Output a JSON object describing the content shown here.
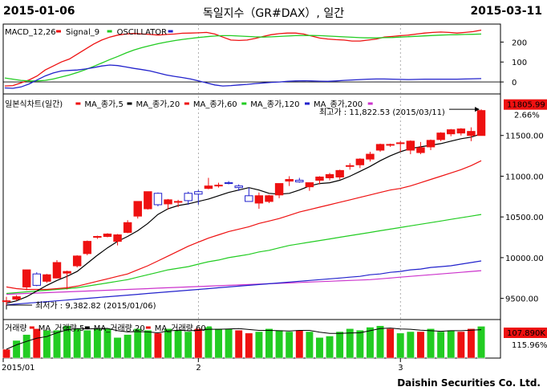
{
  "header": {
    "date_start": "2015-01-06",
    "title": "독일지수（GR#DAX）, 일간",
    "date_end": "2015-03-11"
  },
  "footer": {
    "brand": "Daishin Securities Co. Ltd."
  },
  "colors": {
    "red": "#ee1111",
    "green": "#22cc22",
    "blue": "#2222cc",
    "magenta": "#cc33cc",
    "black": "#000000",
    "grid": "#888888"
  },
  "chart_data": [
    {
      "type": "line",
      "panel": "macd",
      "legend": [
        {
          "label": "MACD_12,26",
          "color": "#ee1111"
        },
        {
          "label": "Signal_9",
          "color": "#22cc22"
        },
        {
          "label": "OSCILLATOR",
          "color": "#2222cc"
        }
      ],
      "y_ticks": [
        "200",
        "100",
        "0"
      ],
      "ylim": [
        -60,
        290
      ],
      "series": [
        {
          "name": "MACD_12,26",
          "color": "#ee1111",
          "values": [
            -20,
            -18,
            -5,
            10,
            30,
            60,
            80,
            100,
            115,
            140,
            165,
            190,
            210,
            225,
            235,
            240,
            243,
            240,
            238,
            235,
            238,
            240,
            244,
            245,
            246,
            248,
            240,
            225,
            210,
            208,
            210,
            218,
            228,
            237,
            242,
            245,
            245,
            240,
            230,
            220,
            215,
            212,
            210,
            205,
            205,
            210,
            215,
            225,
            228,
            232,
            235,
            240,
            245,
            248,
            250,
            248,
            245,
            248,
            252,
            260
          ]
        },
        {
          "name": "Signal_9",
          "color": "#22cc22",
          "values": [
            20,
            14,
            8,
            5,
            5,
            8,
            15,
            25,
            35,
            48,
            62,
            78,
            95,
            112,
            128,
            145,
            160,
            172,
            182,
            192,
            200,
            207,
            213,
            218,
            223,
            227,
            230,
            232,
            232,
            230,
            228,
            226,
            225,
            226,
            228,
            230,
            232,
            233,
            233,
            232,
            230,
            228,
            226,
            224,
            222,
            221,
            221,
            222,
            223,
            225,
            227,
            229,
            231,
            233,
            235,
            236,
            237,
            238,
            239,
            240
          ]
        },
        {
          "name": "OSCILLATOR",
          "color": "#2222cc",
          "values": [
            -30,
            -32,
            -25,
            -10,
            10,
            30,
            45,
            55,
            58,
            60,
            65,
            72,
            80,
            85,
            82,
            75,
            68,
            62,
            55,
            45,
            35,
            28,
            22,
            15,
            5,
            -5,
            -15,
            -20,
            -18,
            -15,
            -12,
            -8,
            -5,
            -2,
            0,
            3,
            5,
            6,
            5,
            4,
            3,
            5,
            8,
            10,
            12,
            14,
            15,
            15,
            14,
            13,
            12,
            13,
            14,
            14,
            14,
            14,
            14,
            15,
            16,
            17
          ]
        }
      ]
    },
    {
      "type": "candlestick",
      "panel": "price",
      "legend": [
        {
          "label": "일본식차트(일간)",
          "color": "#ee1111"
        },
        {
          "label": "MA_종가,5",
          "color": "#000000"
        },
        {
          "label": "MA_종가,20",
          "color": "#ee1111"
        },
        {
          "label": "MA_종가,60",
          "color": "#22cc22"
        },
        {
          "label": "MA_종가,120",
          "color": "#2222cc"
        },
        {
          "label": "MA_종가,200",
          "color": "#cc33cc"
        }
      ],
      "y_ticks": [
        "11500.00",
        "11000.00",
        "10500.00",
        "10000.00",
        "9500.00"
      ],
      "ylim": [
        9240,
        12010
      ],
      "max_annotation": {
        "label": "최고가 : 11,822.53 (2015/03/11)"
      },
      "min_annotation": {
        "label": "최저가 : 9,382.82 (2015/01/06)"
      },
      "last_value": "11805.99",
      "last_change": "2.66%",
      "candles": [
        {
          "o": 9470,
          "h": 9520,
          "l": 9383,
          "c": 9470
        },
        {
          "o": 9490,
          "h": 9540,
          "l": 9470,
          "c": 9520
        },
        {
          "o": 9640,
          "h": 9850,
          "l": 9600,
          "c": 9850
        },
        {
          "o": 9800,
          "h": 9820,
          "l": 9650,
          "c": 9660
        },
        {
          "o": 9710,
          "h": 9800,
          "l": 9690,
          "c": 9790
        },
        {
          "o": 9750,
          "h": 9970,
          "l": 9750,
          "c": 9940
        },
        {
          "o": 9810,
          "h": 9840,
          "l": 9610,
          "c": 9830
        },
        {
          "o": 9900,
          "h": 10030,
          "l": 9880,
          "c": 10020
        },
        {
          "o": 10050,
          "h": 10210,
          "l": 10030,
          "c": 10200
        },
        {
          "o": 10250,
          "h": 10270,
          "l": 10230,
          "c": 10260
        },
        {
          "o": 10260,
          "h": 10300,
          "l": 10250,
          "c": 10290
        },
        {
          "o": 10200,
          "h": 10290,
          "l": 10150,
          "c": 10280
        },
        {
          "o": 10310,
          "h": 10460,
          "l": 10300,
          "c": 10430
        },
        {
          "o": 10510,
          "h": 10690,
          "l": 10480,
          "c": 10690
        },
        {
          "o": 10600,
          "h": 10810,
          "l": 10590,
          "c": 10810
        },
        {
          "o": 10790,
          "h": 10800,
          "l": 10630,
          "c": 10650
        },
        {
          "o": 10660,
          "h": 10720,
          "l": 10590,
          "c": 10710
        },
        {
          "o": 10680,
          "h": 10710,
          "l": 10620,
          "c": 10690
        },
        {
          "o": 10790,
          "h": 10810,
          "l": 10650,
          "c": 10700
        },
        {
          "o": 10810,
          "h": 10830,
          "l": 10650,
          "c": 10780
        },
        {
          "o": 10850,
          "h": 10980,
          "l": 10840,
          "c": 10880
        },
        {
          "o": 10880,
          "h": 10920,
          "l": 10860,
          "c": 10890
        },
        {
          "o": 10920,
          "h": 10940,
          "l": 10900,
          "c": 10910
        },
        {
          "o": 10880,
          "h": 10900,
          "l": 10820,
          "c": 10860
        },
        {
          "o": 10760,
          "h": 10860,
          "l": 10700,
          "c": 10690
        },
        {
          "o": 10670,
          "h": 10800,
          "l": 10600,
          "c": 10760
        },
        {
          "o": 10690,
          "h": 10770,
          "l": 10670,
          "c": 10760
        },
        {
          "o": 10770,
          "h": 10910,
          "l": 10730,
          "c": 10910
        },
        {
          "o": 10940,
          "h": 11000,
          "l": 10880,
          "c": 10960
        },
        {
          "o": 10950,
          "h": 10980,
          "l": 10920,
          "c": 10930
        },
        {
          "o": 10870,
          "h": 10900,
          "l": 10820,
          "c": 10920
        },
        {
          "o": 10950,
          "h": 11000,
          "l": 10900,
          "c": 10990
        },
        {
          "o": 10980,
          "h": 11040,
          "l": 10950,
          "c": 11020
        },
        {
          "o": 10990,
          "h": 11080,
          "l": 10960,
          "c": 11070
        },
        {
          "o": 11120,
          "h": 11160,
          "l": 11080,
          "c": 11130
        },
        {
          "o": 11140,
          "h": 11220,
          "l": 11100,
          "c": 11210
        },
        {
          "o": 11210,
          "h": 11300,
          "l": 11180,
          "c": 11270
        },
        {
          "o": 11320,
          "h": 11400,
          "l": 11300,
          "c": 11390
        },
        {
          "o": 11380,
          "h": 11400,
          "l": 11360,
          "c": 11390
        },
        {
          "o": 11400,
          "h": 11430,
          "l": 11300,
          "c": 11410
        },
        {
          "o": 11320,
          "h": 11440,
          "l": 11270,
          "c": 11430
        },
        {
          "o": 11290,
          "h": 11420,
          "l": 11270,
          "c": 11350
        },
        {
          "o": 11360,
          "h": 11450,
          "l": 11320,
          "c": 11440
        },
        {
          "o": 11450,
          "h": 11540,
          "l": 11430,
          "c": 11530
        },
        {
          "o": 11520,
          "h": 11580,
          "l": 11490,
          "c": 11570
        },
        {
          "o": 11530,
          "h": 11590,
          "l": 11500,
          "c": 11580
        },
        {
          "o": 11500,
          "h": 11600,
          "l": 11430,
          "c": 11550
        },
        {
          "o": 11500,
          "h": 11822,
          "l": 11500,
          "c": 11806
        }
      ],
      "series": [
        {
          "name": "MA_종가,5",
          "color": "#000000",
          "values": [
            9440,
            9470,
            9520,
            9590,
            9660,
            9720,
            9770,
            9830,
            9930,
            10030,
            10120,
            10200,
            10260,
            10330,
            10420,
            10530,
            10600,
            10640,
            10660,
            10690,
            10720,
            10760,
            10800,
            10830,
            10860,
            10830,
            10790,
            10780,
            10790,
            10830,
            10880,
            10910,
            10920,
            10950,
            11000,
            11060,
            11120,
            11190,
            11250,
            11300,
            11340,
            11360,
            11380,
            11400,
            11430,
            11460,
            11480,
            11520
          ]
        },
        {
          "name": "MA_종가,20",
          "color": "#ee1111",
          "values": [
            9640,
            9620,
            9610,
            9610,
            9610,
            9620,
            9630,
            9650,
            9680,
            9710,
            9740,
            9770,
            9800,
            9850,
            9900,
            9960,
            10020,
            10080,
            10140,
            10190,
            10240,
            10280,
            10320,
            10350,
            10380,
            10420,
            10450,
            10480,
            10520,
            10560,
            10590,
            10620,
            10650,
            10680,
            10710,
            10740,
            10770,
            10800,
            10830,
            10850,
            10880,
            10920,
            10960,
            11000,
            11040,
            11080,
            11130,
            11190
          ]
        },
        {
          "name": "MA_종가,60",
          "color": "#22cc22",
          "values": [
            9560,
            9570,
            9580,
            9590,
            9600,
            9610,
            9620,
            9630,
            9650,
            9670,
            9690,
            9710,
            9730,
            9760,
            9790,
            9820,
            9850,
            9870,
            9890,
            9920,
            9950,
            9970,
            10000,
            10020,
            10040,
            10070,
            10090,
            10120,
            10150,
            10170,
            10190,
            10210,
            10230,
            10250,
            10270,
            10290,
            10310,
            10330,
            10350,
            10370,
            10390,
            10410,
            10430,
            10450,
            10470,
            10490,
            10510,
            10530
          ]
        },
        {
          "name": "MA_종가,120",
          "color": "#2222cc",
          "values": [
            9420,
            9430,
            9440,
            9450,
            9460,
            9470,
            9480,
            9490,
            9500,
            9510,
            9520,
            9530,
            9540,
            9550,
            9560,
            9570,
            9580,
            9590,
            9600,
            9610,
            9620,
            9630,
            9640,
            9650,
            9660,
            9670,
            9680,
            9690,
            9700,
            9710,
            9720,
            9730,
            9740,
            9750,
            9760,
            9770,
            9790,
            9800,
            9820,
            9830,
            9850,
            9860,
            9880,
            9890,
            9900,
            9920,
            9940,
            9960
          ]
        },
        {
          "name": "MA_종가,200",
          "color": "#cc33cc",
          "values": [
            9550,
            9555,
            9560,
            9565,
            9570,
            9575,
            9580,
            9585,
            9590,
            9595,
            9600,
            9605,
            9610,
            9615,
            9620,
            9625,
            9630,
            9635,
            9640,
            9645,
            9650,
            9655,
            9660,
            9665,
            9670,
            9675,
            9680,
            9685,
            9690,
            9695,
            9700,
            9705,
            9710,
            9715,
            9720,
            9725,
            9730,
            9740,
            9750,
            9760,
            9770,
            9780,
            9790,
            9800,
            9810,
            9820,
            9830,
            9840
          ]
        }
      ]
    },
    {
      "type": "bar",
      "panel": "volume",
      "legend": [
        {
          "label": "거래량",
          "color": "#ee1111"
        },
        {
          "label": "MA_거래량,5",
          "color": "#000000"
        },
        {
          "label": "MA_거래량,20",
          "color": "#ee1111"
        },
        {
          "label": "MA_거래량,60",
          "color": "#22cc22"
        }
      ],
      "last_value": "107.890K",
      "last_change": "115.96%",
      "ylim": [
        0,
        120
      ],
      "values": [
        30,
        60,
        80,
        100,
        95,
        95,
        110,
        100,
        95,
        100,
        100,
        70,
        80,
        100,
        95,
        85,
        100,
        95,
        90,
        100,
        105,
        100,
        100,
        95,
        85,
        90,
        100,
        95,
        90,
        95,
        90,
        70,
        75,
        90,
        100,
        95,
        105,
        110,
        100,
        85,
        90,
        90,
        100,
        90,
        95,
        90,
        100,
        108
      ],
      "up": [
        false,
        true,
        true,
        false,
        true,
        true,
        true,
        true,
        true,
        true,
        true,
        true,
        true,
        true,
        true,
        false,
        true,
        true,
        true,
        false,
        true,
        true,
        true,
        false,
        false,
        true,
        true,
        true,
        true,
        false,
        true,
        true,
        true,
        true,
        true,
        true,
        true,
        true,
        false,
        true,
        true,
        false,
        true,
        true,
        true,
        false,
        false,
        true
      ],
      "x_ticks": [
        {
          "label": "2015/01",
          "index": 0
        },
        {
          "label": "2",
          "index": 19
        },
        {
          "label": "3",
          "index": 39
        }
      ]
    }
  ]
}
